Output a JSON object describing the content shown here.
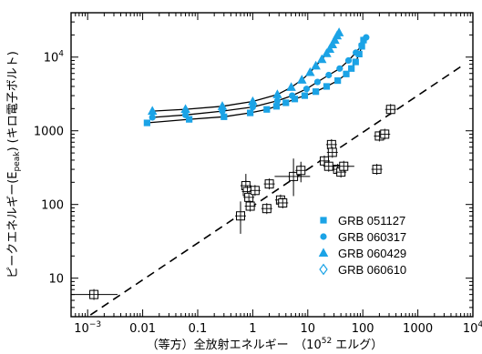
{
  "chart_data": {
    "type": "scatter",
    "x_scale": "log",
    "y_scale": "log",
    "xlim": [
      0.0005,
      10000
    ],
    "ylim": [
      3,
      40000
    ],
    "xlabel_parts": [
      "（等方）全放射エネルギー　（10",
      "52",
      " エルグ）"
    ],
    "ylabel_parts": [
      "ピークエネルギー(E",
      "peak",
      ") (キロ電子ボルト)"
    ],
    "x_ticks": [
      {
        "value": 0.001,
        "mant": "10",
        "exp": "−3"
      },
      {
        "value": 0.01,
        "mant": "0.01",
        "exp": ""
      },
      {
        "value": 0.1,
        "mant": "0.1",
        "exp": ""
      },
      {
        "value": 1,
        "mant": "1",
        "exp": ""
      },
      {
        "value": 10,
        "mant": "10",
        "exp": ""
      },
      {
        "value": 100,
        "mant": "100",
        "exp": ""
      },
      {
        "value": 1000,
        "mant": "1000",
        "exp": ""
      },
      {
        "value": 10000,
        "mant": "10",
        "exp": "4"
      }
    ],
    "y_ticks": [
      {
        "value": 10,
        "mant": "10",
        "exp": ""
      },
      {
        "value": 100,
        "mant": "100",
        "exp": ""
      },
      {
        "value": 1000,
        "mant": "1000",
        "exp": ""
      },
      {
        "value": 10000,
        "mant": "10",
        "exp": "4"
      }
    ],
    "fit_line": {
      "style": "dashed",
      "points": [
        [
          0.0007,
          2.5
        ],
        [
          7000,
          8000
        ]
      ]
    },
    "reference_grbs": {
      "marker": "open-square-with-cross",
      "points": [
        {
          "x": 0.0013,
          "y": 6,
          "xerr": [
            0.0005,
            0.0035
          ]
        },
        {
          "x": 0.6,
          "y": 70,
          "yerr": [
            40,
            110
          ]
        },
        {
          "x": 0.75,
          "y": 180,
          "yerr": [
            120,
            260
          ]
        },
        {
          "x": 0.8,
          "y": 150
        },
        {
          "x": 0.85,
          "y": 125
        },
        {
          "x": 0.9,
          "y": 95
        },
        {
          "x": 1.1,
          "y": 155
        },
        {
          "x": 1.8,
          "y": 88
        },
        {
          "x": 2.0,
          "y": 190
        },
        {
          "x": 3.2,
          "y": 115
        },
        {
          "x": 3.5,
          "y": 105
        },
        {
          "x": 5.5,
          "y": 240,
          "xerr": [
            2.5,
            11
          ],
          "yerr": [
            130,
            420
          ]
        },
        {
          "x": 7.5,
          "y": 290,
          "yerr": [
            200,
            380
          ]
        },
        {
          "x": 20,
          "y": 390
        },
        {
          "x": 24,
          "y": 330
        },
        {
          "x": 27,
          "y": 650
        },
        {
          "x": 28,
          "y": 510
        },
        {
          "x": 35,
          "y": 300
        },
        {
          "x": 40,
          "y": 275
        },
        {
          "x": 45,
          "y": 330,
          "xerr": [
            28,
            70
          ]
        },
        {
          "x": 180,
          "y": 300
        },
        {
          "x": 200,
          "y": 850
        },
        {
          "x": 250,
          "y": 900
        },
        {
          "x": 320,
          "y": 1950
        }
      ]
    },
    "series": [
      {
        "name": "GRB 051127",
        "marker": "square",
        "points": [
          [
            0.012,
            1280
          ],
          [
            0.07,
            1430
          ],
          [
            0.3,
            1550
          ],
          [
            0.9,
            1750
          ],
          [
            1.8,
            1950
          ],
          [
            2.7,
            2150
          ],
          [
            4.0,
            2400
          ],
          [
            5.8,
            2700
          ],
          [
            8.8,
            3000
          ],
          [
            14,
            3400
          ],
          [
            22,
            4000
          ],
          [
            35,
            4800
          ],
          [
            50,
            5900
          ],
          [
            62,
            7000
          ],
          [
            74,
            8600
          ],
          [
            86,
            11000
          ],
          [
            96,
            14000
          ],
          [
            103,
            17000
          ]
        ]
      },
      {
        "name": "GRB 060317",
        "marker": "circle",
        "points": [
          [
            0.015,
            1520
          ],
          [
            0.06,
            1640
          ],
          [
            0.28,
            1850
          ],
          [
            1.0,
            2100
          ],
          [
            2.8,
            2550
          ],
          [
            5.2,
            3000
          ],
          [
            9.5,
            3700
          ],
          [
            15,
            4600
          ],
          [
            24,
            5700
          ],
          [
            38,
            7000
          ],
          [
            55,
            9000
          ],
          [
            75,
            11500
          ],
          [
            95,
            14500
          ],
          [
            115,
            18500
          ]
        ]
      },
      {
        "name": "GRB 060429",
        "marker": "triangle",
        "points": [
          [
            0.015,
            1850
          ],
          [
            0.06,
            1960
          ],
          [
            0.28,
            2150
          ],
          [
            1.0,
            2500
          ],
          [
            2.8,
            3100
          ],
          [
            5.0,
            3900
          ],
          [
            7.8,
            4900
          ],
          [
            11,
            6200
          ],
          [
            14,
            7600
          ],
          [
            18,
            9300
          ],
          [
            22,
            11200
          ],
          [
            25,
            12800
          ],
          [
            28,
            14800
          ],
          [
            31,
            17000
          ],
          [
            34,
            19500
          ],
          [
            37,
            21500
          ]
        ]
      },
      {
        "name": "GRB 060610",
        "marker": "diamond",
        "points": []
      }
    ],
    "fit_curves": [
      {
        "points": [
          [
            0.012,
            1280
          ],
          [
            0.07,
            1430
          ],
          [
            0.3,
            1550
          ],
          [
            0.9,
            1750
          ],
          [
            1.8,
            1950
          ],
          [
            2.7,
            2150
          ],
          [
            4.0,
            2400
          ],
          [
            5.8,
            2700
          ],
          [
            8.8,
            3000
          ],
          [
            14,
            3400
          ],
          [
            22,
            4000
          ],
          [
            35,
            4800
          ],
          [
            50,
            5900
          ],
          [
            62,
            7000
          ],
          [
            74,
            8600
          ],
          [
            86,
            11000
          ],
          [
            96,
            14000
          ],
          [
            103,
            17000
          ],
          [
            110,
            19500
          ]
        ]
      },
      {
        "points": [
          [
            0.015,
            1520
          ],
          [
            0.06,
            1640
          ],
          [
            0.28,
            1850
          ],
          [
            1.0,
            2100
          ],
          [
            2.8,
            2550
          ],
          [
            5.2,
            3000
          ],
          [
            9.5,
            3700
          ],
          [
            15,
            4600
          ],
          [
            24,
            5700
          ],
          [
            38,
            7000
          ],
          [
            55,
            9000
          ],
          [
            75,
            11500
          ],
          [
            95,
            14500
          ],
          [
            115,
            18500
          ]
        ]
      },
      {
        "points": [
          [
            0.015,
            1850
          ],
          [
            0.06,
            1960
          ],
          [
            0.28,
            2150
          ],
          [
            1.0,
            2500
          ],
          [
            2.8,
            3100
          ],
          [
            5.0,
            3900
          ],
          [
            7.8,
            4900
          ],
          [
            11,
            6200
          ],
          [
            14,
            7600
          ],
          [
            18,
            9300
          ],
          [
            22,
            11200
          ],
          [
            25,
            12800
          ],
          [
            28,
            14800
          ],
          [
            31,
            17000
          ],
          [
            34,
            19500
          ],
          [
            37,
            21500
          ]
        ]
      }
    ],
    "legend": {
      "position": "lower-right"
    },
    "colors": {
      "series": "#1ba3e6",
      "reference": "#000000"
    },
    "grid": false
  }
}
